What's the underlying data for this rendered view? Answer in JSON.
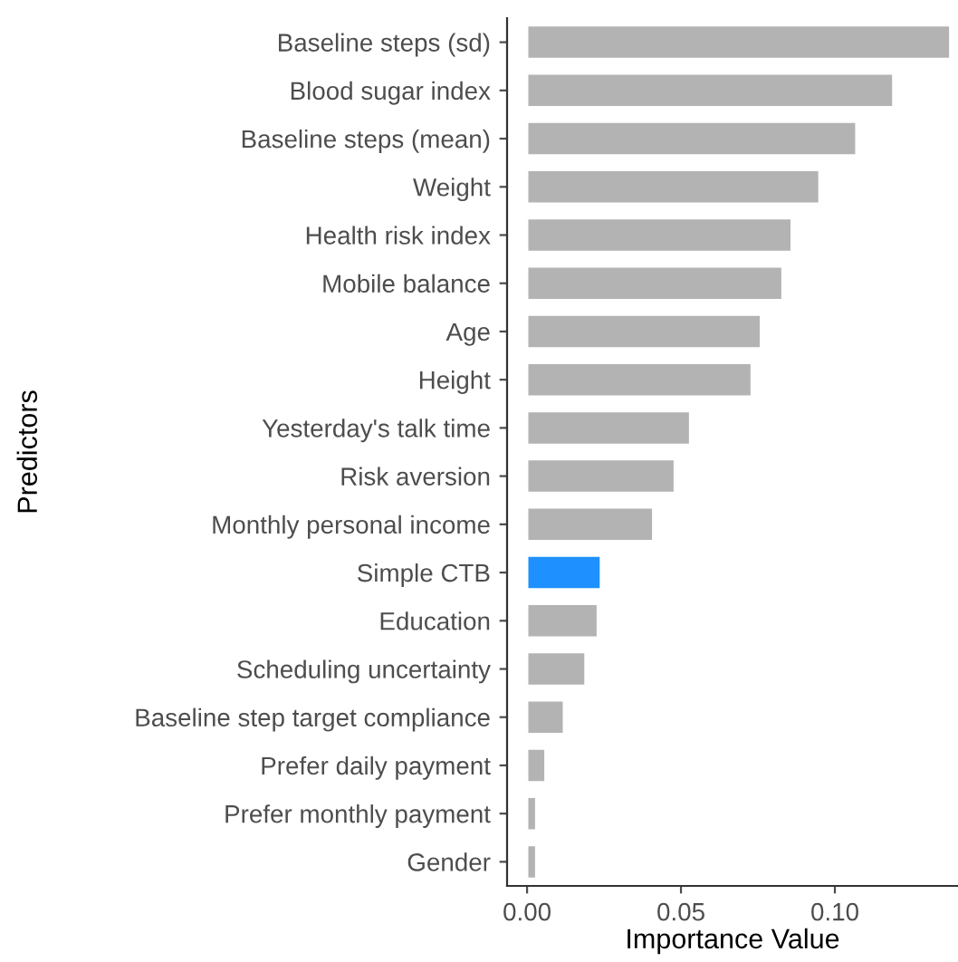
{
  "chart_data": {
    "type": "bar",
    "orientation": "horizontal",
    "xlabel": "Importance Value",
    "ylabel": "Predictors",
    "categories": [
      "Baseline steps (sd)",
      "Blood sugar index",
      "Baseline steps (mean)",
      "Weight",
      "Health risk index",
      "Mobile balance",
      "Age",
      "Height",
      "Yesterday's talk time",
      "Risk aversion",
      "Monthly personal income",
      "Simple CTB",
      "Education",
      "Scheduling uncertainty",
      "Baseline step target compliance",
      "Prefer daily payment",
      "Prefer monthly payment",
      "Gender"
    ],
    "values": [
      0.1375,
      0.119,
      0.107,
      0.095,
      0.086,
      0.083,
      0.076,
      0.073,
      0.053,
      0.048,
      0.041,
      0.024,
      0.023,
      0.019,
      0.012,
      0.006,
      0.003,
      0.003
    ],
    "colors": [
      "#b3b3b3",
      "#b3b3b3",
      "#b3b3b3",
      "#b3b3b3",
      "#b3b3b3",
      "#b3b3b3",
      "#b3b3b3",
      "#b3b3b3",
      "#b3b3b3",
      "#b3b3b3",
      "#b3b3b3",
      "#1e90ff",
      "#b3b3b3",
      "#b3b3b3",
      "#b3b3b3",
      "#b3b3b3",
      "#b3b3b3",
      "#b3b3b3"
    ],
    "xlim": [
      -0.0065,
      0.14
    ],
    "xticks": [
      {
        "value": 0,
        "label": "0.00"
      },
      0.05,
      {
        "value": 0.1,
        "label": "0.10"
      }
    ],
    "grid": false,
    "legend": false
  }
}
